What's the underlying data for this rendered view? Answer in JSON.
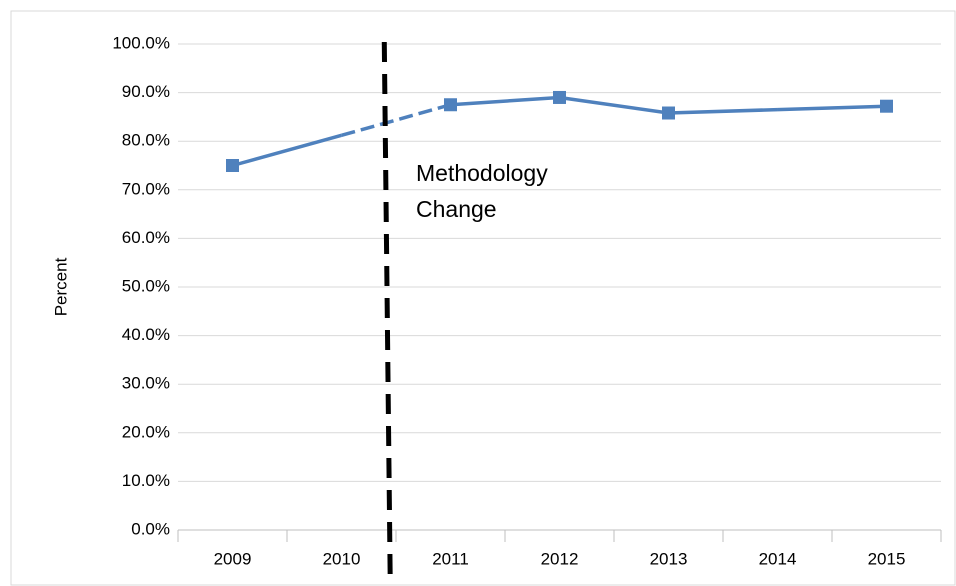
{
  "chart_data": {
    "type": "line",
    "categories": [
      "2009",
      "2010",
      "2011",
      "2012",
      "2013",
      "2014",
      "2015"
    ],
    "series": [
      {
        "color": "#4f81bd",
        "values": [
          75.0,
          81.2,
          87.5,
          89.0,
          85.8,
          86.5,
          87.2
        ],
        "markers": [
          true,
          false,
          true,
          true,
          true,
          false,
          true
        ],
        "dashed_segments": [
          1
        ]
      }
    ],
    "y_axis_label": "Percent",
    "ylim": [
      0,
      100
    ],
    "yticks": [
      {
        "value": 0,
        "label": "0.0%"
      },
      {
        "value": 10,
        "label": "10.0%"
      },
      {
        "value": 20,
        "label": "20.0%"
      },
      {
        "value": 30,
        "label": "30.0%"
      },
      {
        "value": 40,
        "label": "40.0%"
      },
      {
        "value": 50,
        "label": "50.0%"
      },
      {
        "value": 60,
        "label": "60.0%"
      },
      {
        "value": 70,
        "label": "70.0%"
      },
      {
        "value": 80,
        "label": "80.0%"
      },
      {
        "value": 90,
        "label": "90.0%"
      },
      {
        "value": 100,
        "label": "100.0%"
      }
    ],
    "grid": true,
    "annotation": [
      "Methodology",
      "Change"
    ]
  }
}
